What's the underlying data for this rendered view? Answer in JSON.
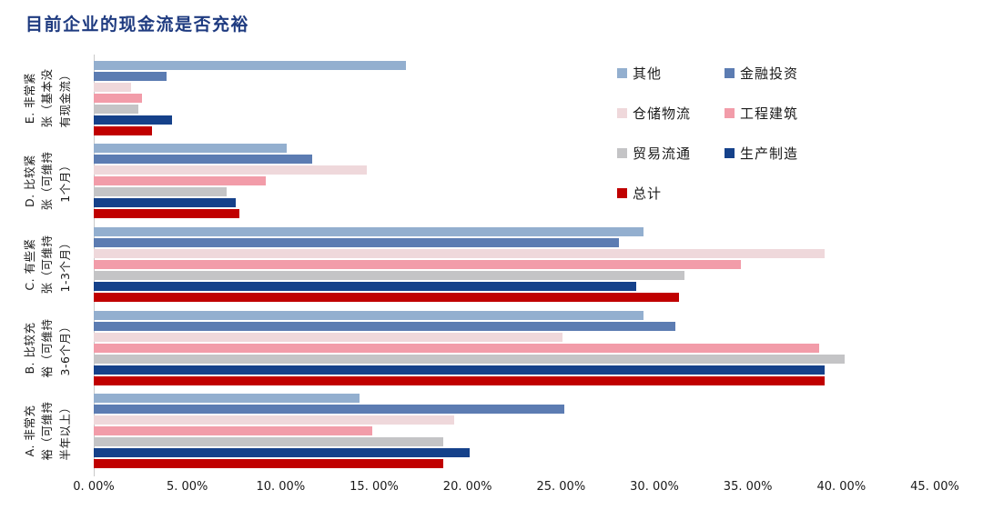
{
  "chart_data": {
    "type": "bar",
    "orientation": "horizontal",
    "title": "目前企业的现金流是否充裕",
    "xlabel": "",
    "ylabel": "",
    "xlim": [
      0,
      45
    ],
    "grid": false,
    "legend_position": "top-right-two-columns",
    "x_ticks": [
      "0. 00%",
      "5. 00%",
      "10. 00%",
      "15. 00%",
      "20. 00%",
      "25. 00%",
      "30. 00%",
      "35. 00%",
      "40. 00%",
      "45. 00%"
    ],
    "categories": [
      {
        "id": "E",
        "label": "E. 非常紧张（基本没有现金流）",
        "label_lines": [
          "E. 非常紧",
          "张（基本没",
          "有现金流）"
        ]
      },
      {
        "id": "D",
        "label": "D. 比较紧张（可维持1个月）",
        "label_lines": [
          "D. 比较紧",
          "张（可维持",
          "1个月）"
        ]
      },
      {
        "id": "C",
        "label": "C. 有些紧张（可维持1-3个月）",
        "label_lines": [
          "C. 有些紧",
          "张（可维持",
          "1-3个月）"
        ]
      },
      {
        "id": "B",
        "label": "B. 比较充裕（可维持3-6个月）",
        "label_lines": [
          "B. 比较充",
          "裕（可维持",
          "3-6个月）"
        ]
      },
      {
        "id": "A",
        "label": "A. 非常充裕（可维持半年以上）",
        "label_lines": [
          "A. 非常充",
          "裕（可维持",
          "半年以上）"
        ]
      }
    ],
    "series": [
      {
        "id": "other",
        "name": "其他",
        "color": "#93AFCF",
        "values": [
          16.7,
          10.3,
          29.4,
          29.4,
          14.2
        ]
      },
      {
        "id": "finance",
        "name": "金融投资",
        "color": "#5C7CB2",
        "values": [
          3.9,
          11.7,
          28.1,
          31.1,
          25.2
        ]
      },
      {
        "id": "logistics",
        "name": "仓储物流",
        "color": "#EFD8DB",
        "values": [
          2.0,
          14.6,
          39.1,
          25.1,
          19.3
        ]
      },
      {
        "id": "construction",
        "name": "工程建筑",
        "color": "#F29CA9",
        "values": [
          2.6,
          9.2,
          34.6,
          38.8,
          14.9
        ]
      },
      {
        "id": "trade",
        "name": "贸易流通",
        "color": "#C4C4C6",
        "values": [
          2.4,
          7.1,
          31.6,
          40.2,
          18.7
        ]
      },
      {
        "id": "manufacturing",
        "name": "生产制造",
        "color": "#15418A",
        "values": [
          4.2,
          7.6,
          29.0,
          39.1,
          20.1
        ]
      },
      {
        "id": "total",
        "name": "总计",
        "color": "#C00000",
        "values": [
          3.1,
          7.8,
          31.3,
          39.1,
          18.7
        ]
      }
    ]
  },
  "colors": {
    "title": "#1F3B80",
    "axis_line": "#C9C9C9",
    "text": "#1A1A1A"
  }
}
